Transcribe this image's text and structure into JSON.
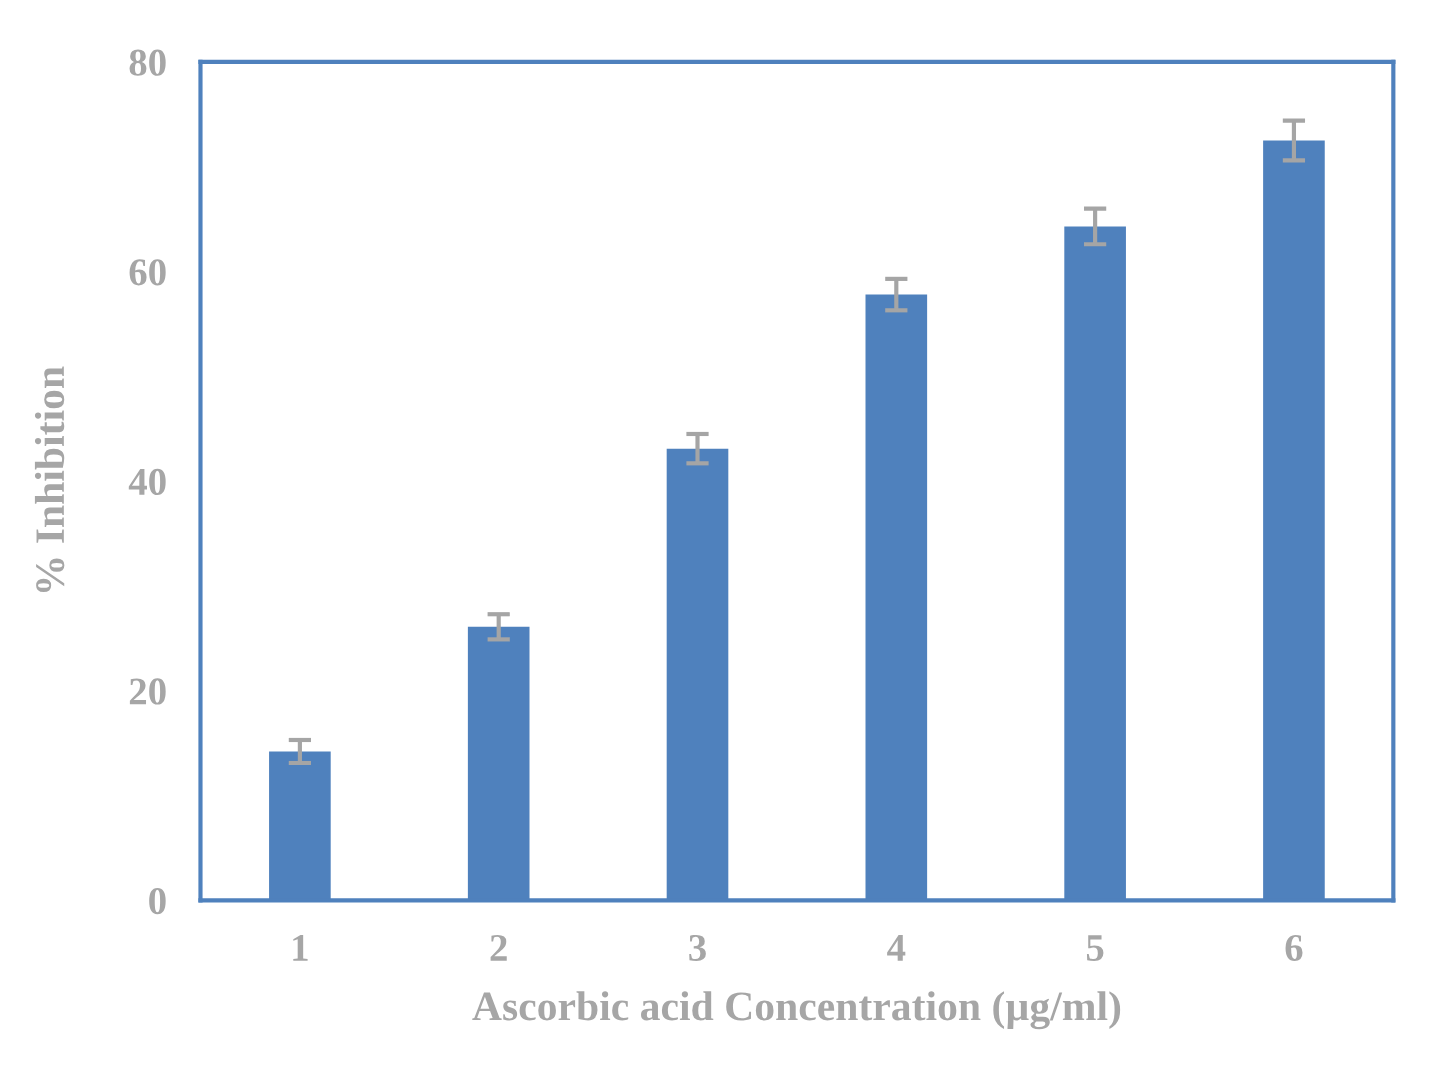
{
  "chart_data": {
    "type": "bar",
    "xlabel": "Ascorbic acid Concentration (µg/ml)",
    "ylabel": "% Inhibition",
    "categories": [
      "1",
      "2",
      "3",
      "4",
      "5",
      "6"
    ],
    "values": [
      14.2,
      26.1,
      43.1,
      57.8,
      64.3,
      72.5
    ],
    "errors": [
      1.1,
      1.2,
      1.4,
      1.5,
      1.7,
      1.9
    ],
    "color": "#4f81bd",
    "ylim": [
      0,
      80
    ],
    "yticks": [
      0,
      20,
      40,
      60,
      80
    ],
    "grid": false
  }
}
